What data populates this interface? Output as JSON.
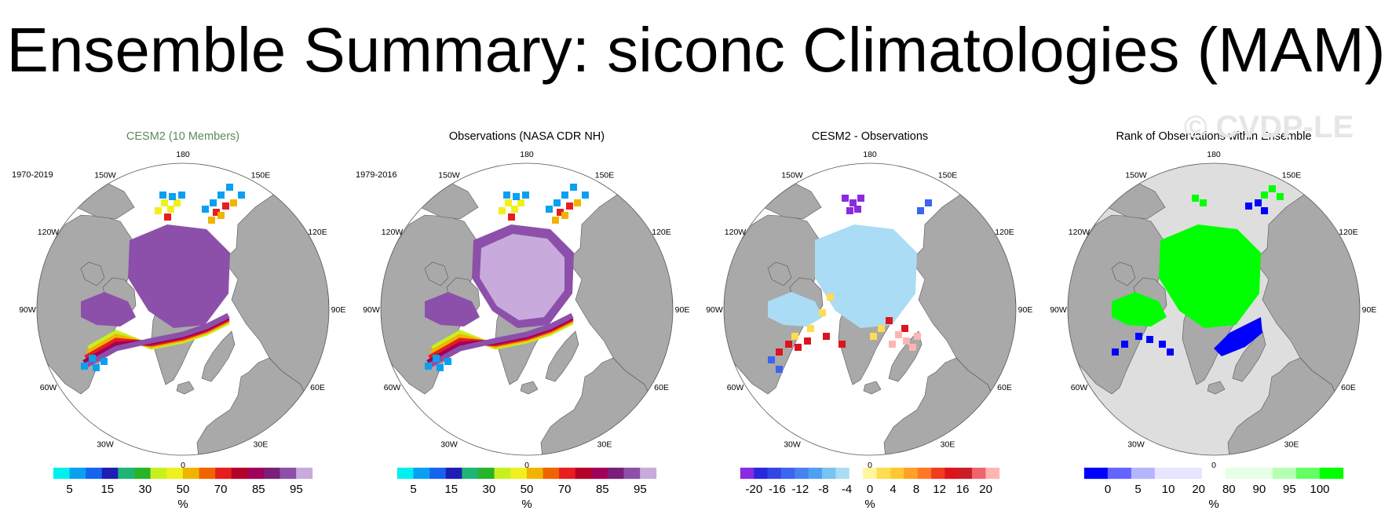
{
  "title": "Ensemble Summary: siconc Climatologies (MAM)",
  "watermark": "© CVDP-LE",
  "colors": {
    "land": "#a9a9a9",
    "ocean": "#ffffff",
    "land_rank": "#a9a9a9",
    "ocean_rank": "#dedede"
  },
  "lon_labels": [
    "180",
    "150E",
    "120E",
    "90E",
    "60E",
    "30E",
    "0",
    "30W",
    "60W",
    "90W",
    "120W",
    "150W"
  ],
  "panels": [
    {
      "title": "CESM2 (10 Members)",
      "title_color": "#5b8a5b",
      "period": "1970-2019",
      "colorbar": {
        "colors": [
          "#00f0f0",
          "#0aa0f0",
          "#1464f0",
          "#1e1eb4",
          "#1eb478",
          "#28b428",
          "#c8f01e",
          "#f0f01e",
          "#f0b400",
          "#f06400",
          "#e61e1e",
          "#b40028",
          "#a0005a",
          "#7a1e78",
          "#8c50aa",
          "#c8aadc"
        ],
        "tick_labels": [
          "5",
          "15",
          "30",
          "50",
          "70",
          "85",
          "95"
        ],
        "unit": "%"
      }
    },
    {
      "title": "Observations (NASA CDR NH)",
      "title_color": "#000000",
      "period": "1979-2016",
      "colorbar": {
        "colors": [
          "#00f0f0",
          "#0aa0f0",
          "#1464f0",
          "#1e1eb4",
          "#1eb478",
          "#28b428",
          "#c8f01e",
          "#f0f01e",
          "#f0b400",
          "#f06400",
          "#e61e1e",
          "#b40028",
          "#a0005a",
          "#7a1e78",
          "#8c50aa",
          "#c8aadc"
        ],
        "tick_labels": [
          "5",
          "15",
          "30",
          "50",
          "70",
          "85",
          "95"
        ],
        "unit": "%"
      }
    },
    {
      "title": "CESM2 - Observations",
      "title_color": "#000000",
      "period": "",
      "colorbar": {
        "colors": [
          "#8a2be2",
          "#2828dc",
          "#3246e6",
          "#3c64f0",
          "#4682f0",
          "#50a0f0",
          "#78c3f0",
          "#aadcf5",
          "#ffffff",
          "#fff5a0",
          "#ffdc50",
          "#ffc832",
          "#ffa028",
          "#ff7828",
          "#f03c1e",
          "#dc141e",
          "#c81e28",
          "#f0646e",
          "#ffb4b4"
        ],
        "tick_labels": [
          "-20",
          "-16",
          "-12",
          "-8",
          "-4",
          "0",
          "4",
          "8",
          "12",
          "16",
          "20"
        ],
        "unit": "%"
      }
    },
    {
      "title": "Rank of Observations within Ensemble",
      "title_color": "#000000",
      "period": "",
      "colorbar": {
        "colors": [
          "#0000ff",
          "#6464ff",
          "#b4b4ff",
          "#e6e6ff",
          "#e6e6ff",
          "#ffffff",
          "#e6ffe6",
          "#e6ffe6",
          "#b4ffb4",
          "#64ff64",
          "#00ff00"
        ],
        "tick_labels": [
          "0",
          "5",
          "10",
          "20",
          "80",
          "90",
          "95",
          "100"
        ],
        "unit": "%"
      }
    }
  ]
}
